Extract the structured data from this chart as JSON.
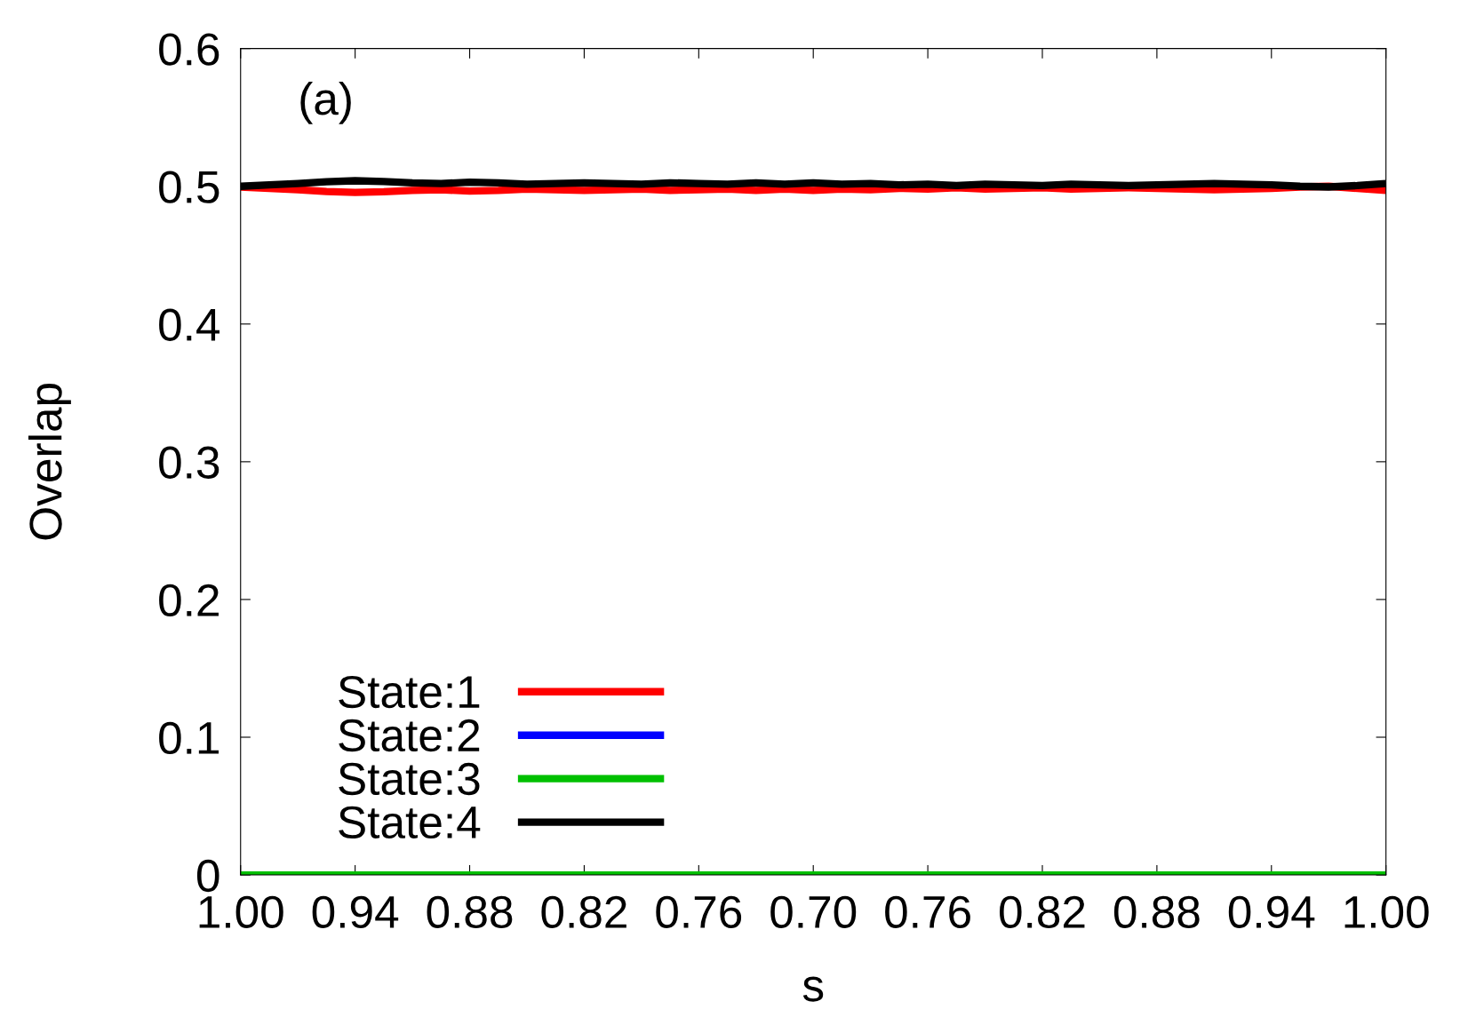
{
  "chart_data": {
    "type": "line",
    "xlabel": "s",
    "ylabel": "Overlap",
    "annotations": [
      "(a)"
    ],
    "categories": [
      "1.00",
      null,
      null,
      null,
      "0.94",
      null,
      null,
      null,
      "0.88",
      null,
      null,
      null,
      "0.82",
      null,
      null,
      null,
      "0.76",
      null,
      null,
      null,
      "0.70",
      null,
      null,
      null,
      "0.76",
      null,
      null,
      null,
      "0.82",
      null,
      null,
      null,
      "0.88",
      null,
      null,
      null,
      "0.94",
      null,
      null,
      null,
      "1.00"
    ],
    "ylim": [
      0,
      0.6
    ],
    "yticks": [
      0,
      0.1,
      0.2,
      0.3,
      0.4,
      0.5,
      0.6
    ],
    "grid": false,
    "legend": "bottom left",
    "line_style": "solid",
    "marker": "none",
    "series": [
      {
        "name": "State:1",
        "color": "#ff0000",
        "values": [
          0.4995,
          0.4985,
          0.4975,
          0.4962,
          0.4955,
          0.496,
          0.497,
          0.4975,
          0.4965,
          0.497,
          0.498,
          0.4975,
          0.497,
          0.4975,
          0.498,
          0.497,
          0.4975,
          0.498,
          0.497,
          0.498,
          0.497,
          0.498,
          0.4975,
          0.4985,
          0.498,
          0.499,
          0.498,
          0.4985,
          0.499,
          0.498,
          0.4985,
          0.499,
          0.4985,
          0.498,
          0.4975,
          0.498,
          0.4985,
          0.4995,
          0.5,
          0.4985,
          0.497
        ]
      },
      {
        "name": "State:2",
        "color": "#0000ff",
        "values": [
          null,
          null,
          null,
          null,
          null,
          null,
          null,
          null,
          null,
          null,
          null,
          null,
          null,
          null,
          null,
          null,
          null,
          null,
          null,
          null,
          null,
          null,
          null,
          null,
          null,
          null,
          null,
          null,
          null,
          null,
          null,
          null,
          null,
          null,
          null,
          null,
          null,
          null,
          null,
          null,
          null
        ]
      },
      {
        "name": "State:3",
        "color": "#00c000",
        "values": [
          0,
          0,
          0,
          0,
          0,
          0,
          0,
          0,
          0,
          0,
          0,
          0,
          0,
          0,
          0,
          0,
          0,
          0,
          0,
          0,
          0,
          0,
          0,
          0,
          0,
          0,
          0,
          0,
          0,
          0,
          0,
          0,
          0,
          0,
          0,
          0,
          0,
          0,
          0,
          0,
          0
        ]
      },
      {
        "name": "State:4",
        "color": "#000000",
        "values": [
          0.5,
          0.501,
          0.502,
          0.5033,
          0.504,
          0.5035,
          0.5025,
          0.502,
          0.503,
          0.5025,
          0.5015,
          0.502,
          0.5025,
          0.502,
          0.5015,
          0.5025,
          0.502,
          0.5015,
          0.5025,
          0.5015,
          0.5025,
          0.5015,
          0.502,
          0.501,
          0.5015,
          0.5005,
          0.5015,
          0.501,
          0.5005,
          0.5015,
          0.501,
          0.5005,
          0.501,
          0.5015,
          0.502,
          0.5015,
          0.501,
          0.5,
          0.4995,
          0.5005,
          0.502
        ]
      }
    ]
  }
}
